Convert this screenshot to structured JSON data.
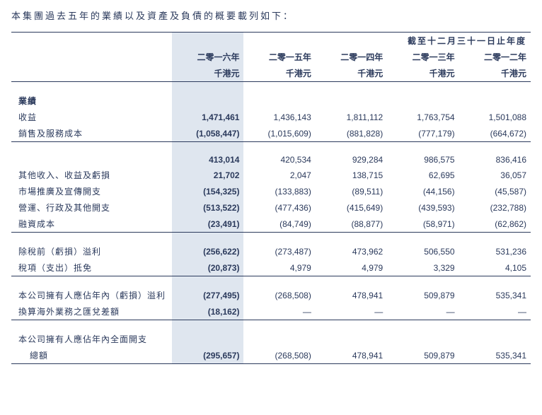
{
  "intro": "本集團過去五年的業績以及資產及負債的概要載列如下：",
  "periodHeader": "截至十二月三十一日止年度",
  "years": [
    "二零一六年",
    "二零一五年",
    "二零一四年",
    "二零一三年",
    "二零一二年"
  ],
  "unit": "千港元",
  "sectionResults": "業績",
  "rows": {
    "r1": {
      "l": "收益",
      "v": [
        "1,471,461",
        "1,436,143",
        "1,811,112",
        "1,763,754",
        "1,501,088"
      ]
    },
    "r2": {
      "l": "銷售及服務成本",
      "v": [
        "(1,058,447)",
        "(1,015,609)",
        "(881,828)",
        "(777,179)",
        "(664,672)"
      ]
    },
    "r3": {
      "l": "",
      "v": [
        "413,014",
        "420,534",
        "929,284",
        "986,575",
        "836,416"
      ]
    },
    "r4": {
      "l": "其他收入、收益及虧損",
      "v": [
        "21,702",
        "2,047",
        "138,715",
        "62,695",
        "36,057"
      ]
    },
    "r5": {
      "l": "市場推廣及宣傳開支",
      "v": [
        "(154,325)",
        "(133,883)",
        "(89,511)",
        "(44,156)",
        "(45,587)"
      ]
    },
    "r6": {
      "l": "營運、行政及其他開支",
      "v": [
        "(513,522)",
        "(477,436)",
        "(415,649)",
        "(439,593)",
        "(232,788)"
      ]
    },
    "r7": {
      "l": "融資成本",
      "v": [
        "(23,491)",
        "(84,749)",
        "(88,877)",
        "(58,971)",
        "(62,862)"
      ]
    },
    "r8": {
      "l": "除稅前（虧損）溢利",
      "v": [
        "(256,622)",
        "(273,487)",
        "473,962",
        "506,550",
        "531,236"
      ]
    },
    "r9": {
      "l": "稅項（支出）抵免",
      "v": [
        "(20,873)",
        "4,979",
        "4,979",
        "3,329",
        "4,105"
      ]
    },
    "r10": {
      "l": "本公司擁有人應佔年內（虧損）溢利",
      "v": [
        "(277,495)",
        "(268,508)",
        "478,941",
        "509,879",
        "535,341"
      ]
    },
    "r11": {
      "l": "換算海外業務之匯兌差額",
      "v": [
        "(18,162)",
        "—",
        "—",
        "—",
        "—"
      ]
    },
    "r12a": {
      "l": "本公司擁有人應佔年內全面開支"
    },
    "r12b": {
      "l": "總額",
      "v": [
        "(295,657)",
        "(268,508)",
        "478,941",
        "509,879",
        "535,341"
      ]
    }
  }
}
